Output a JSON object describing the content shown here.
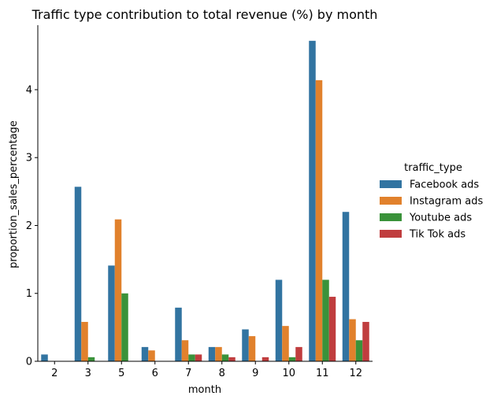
{
  "chart_data": {
    "type": "bar",
    "title": "Traffic type contribution to total revenue (%) by month",
    "xlabel": "month",
    "ylabel": "proportion_sales_percentage",
    "categories": [
      "2",
      "3",
      "5",
      "6",
      "7",
      "8",
      "9",
      "10",
      "11",
      "12"
    ],
    "yticks": [
      "0",
      "1",
      "2",
      "3",
      "4"
    ],
    "ylim": [
      0,
      4.95
    ],
    "grid": false,
    "legend": {
      "title": "traffic_type",
      "placement": "right"
    },
    "series": [
      {
        "name": "Facebook ads",
        "color": "#3274a1",
        "values": [
          0.1,
          2.57,
          1.41,
          0.21,
          0.79,
          0.21,
          0.47,
          1.2,
          4.72,
          2.2
        ]
      },
      {
        "name": "Instagram ads",
        "color": "#e1812c",
        "values": [
          0,
          0.58,
          2.09,
          0.16,
          0.31,
          0.21,
          0.37,
          0.52,
          4.14,
          0.62
        ]
      },
      {
        "name": "Youtube ads",
        "color": "#3a923a",
        "values": [
          0,
          0.06,
          1.0,
          0,
          0.1,
          0.1,
          0,
          0.06,
          1.2,
          0.31
        ]
      },
      {
        "name": "Tik Tok ads",
        "color": "#c03d3e",
        "values": [
          0,
          0,
          0,
          0,
          0.1,
          0.06,
          0.06,
          0.21,
          0.95,
          0.58
        ]
      }
    ]
  }
}
